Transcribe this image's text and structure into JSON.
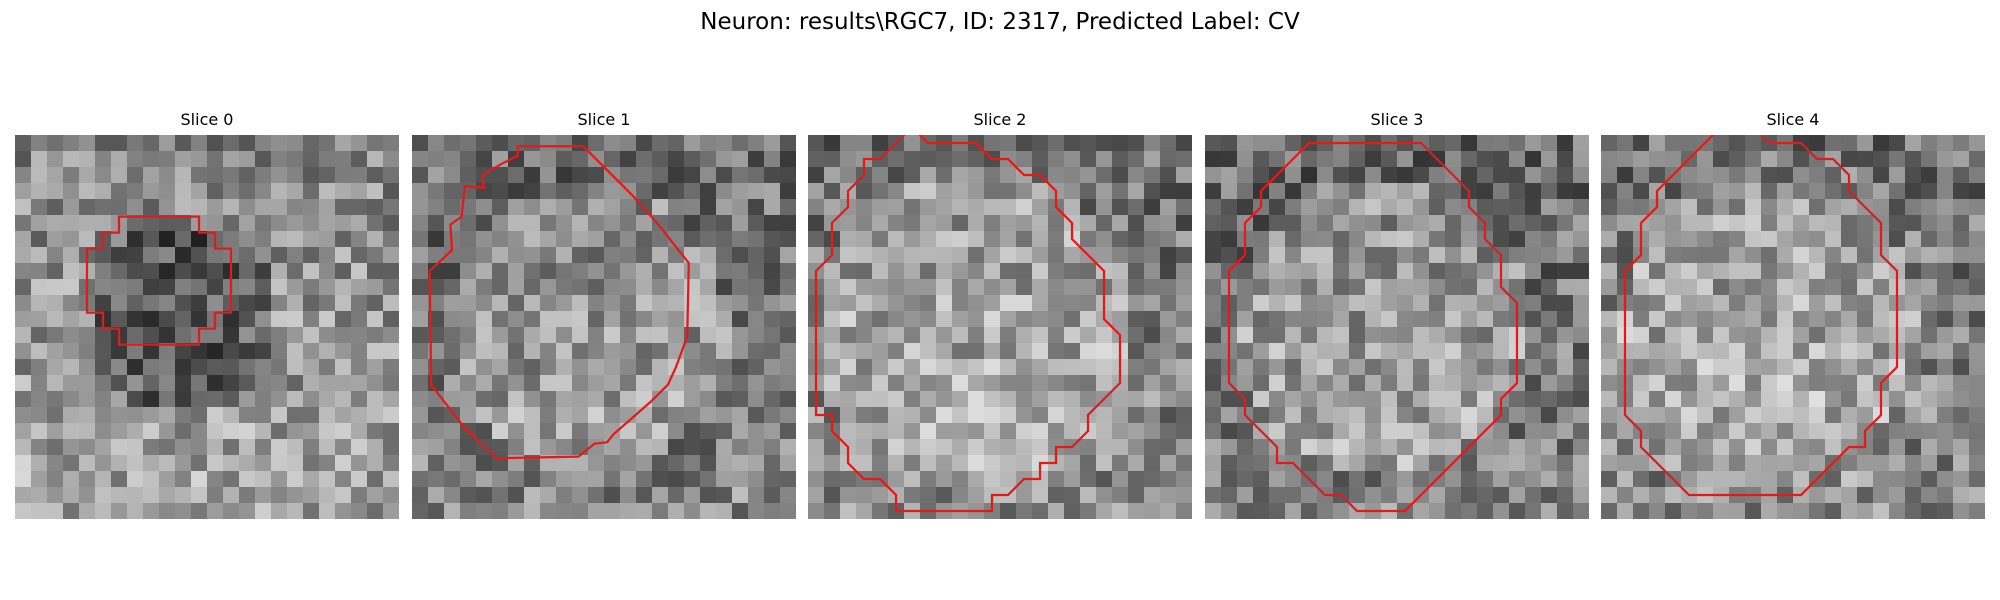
{
  "figure": {
    "suptitle": "Neuron: results\\RGC7, ID: 2317, Predicted Label: CV"
  },
  "panels": [
    {
      "title": "Slice 0",
      "contour": [
        [
          11.5,
          0.5
        ],
        [
          11.5,
          1.5
        ],
        [
          12.5,
          1.5
        ],
        [
          12.5,
          2.5
        ],
        [
          13.5,
          2.5
        ],
        [
          13.5,
          3.5
        ],
        [
          13.5,
          4.5
        ],
        [
          13.5,
          5.5
        ],
        [
          13.5,
          6.5
        ],
        [
          12.5,
          6.5
        ],
        [
          12.5,
          7.5
        ],
        [
          11.5,
          7.5
        ],
        [
          11.5,
          8.5
        ],
        [
          10.5,
          8.5
        ],
        [
          9.5,
          8.5
        ],
        [
          8.5,
          8.5
        ],
        [
          7.5,
          8.5
        ],
        [
          6.5,
          8.5
        ],
        [
          6.5,
          7.5
        ],
        [
          5.5,
          7.5
        ],
        [
          5.5,
          6.5
        ],
        [
          4.5,
          6.5
        ],
        [
          4.5,
          5.5
        ],
        [
          4.5,
          4.5
        ],
        [
          4.5,
          3.5
        ],
        [
          4.5,
          2.5
        ],
        [
          5.5,
          2.5
        ],
        [
          5.5,
          1.5
        ],
        [
          6.5,
          1.5
        ],
        [
          6.5,
          0.5
        ],
        [
          7.5,
          0.5
        ],
        [
          8.5,
          0.5
        ],
        [
          9.5,
          0.5
        ],
        [
          10.5,
          0.5
        ]
      ],
      "contour_offset": [
        0,
        4.6
      ],
      "contour_scale": 1
    },
    {
      "title": "Slice 1",
      "contour": [
        [
          6.6,
          0.7
        ],
        [
          10.7,
          0.7
        ],
        [
          12.6,
          2.6
        ],
        [
          13.8,
          3.8
        ],
        [
          15.4,
          5.6
        ],
        [
          16.5,
          7.0
        ],
        [
          17.3,
          8.0
        ],
        [
          17.2,
          12.6
        ],
        [
          16.5,
          14.5
        ],
        [
          16.0,
          15.6
        ],
        [
          15.0,
          16.6
        ],
        [
          12.6,
          18.7
        ],
        [
          12.2,
          19.2
        ],
        [
          11.4,
          19.3
        ],
        [
          10.4,
          20.1
        ],
        [
          5.3,
          20.2
        ],
        [
          3.2,
          18.2
        ],
        [
          1.5,
          16.0
        ],
        [
          1.2,
          15.7
        ],
        [
          1.1,
          8.5
        ],
        [
          2.5,
          7.2
        ],
        [
          2.4,
          5.6
        ],
        [
          3.1,
          5.1
        ],
        [
          3.3,
          3.2
        ],
        [
          4.5,
          3.3
        ],
        [
          4.4,
          2.5
        ],
        [
          5.6,
          1.8
        ],
        [
          6.6,
          1.3
        ]
      ],
      "contour_offset": [
        0,
        0
      ],
      "contour_scale": 1
    },
    {
      "title": "Slice 2",
      "contour": [
        [
          6.5,
          -0.5
        ],
        [
          7.5,
          0.5
        ],
        [
          8.5,
          0.5
        ],
        [
          9.5,
          0.5
        ],
        [
          10.5,
          0.5
        ],
        [
          11.5,
          1.5
        ],
        [
          12.5,
          1.5
        ],
        [
          13.5,
          2.5
        ],
        [
          14.5,
          2.5
        ],
        [
          15.5,
          3.5
        ],
        [
          15.5,
          4.5
        ],
        [
          16.5,
          5.5
        ],
        [
          16.5,
          6.5
        ],
        [
          17.5,
          7.5
        ],
        [
          18.5,
          8.5
        ],
        [
          18.5,
          9.5
        ],
        [
          18.5,
          10.5
        ],
        [
          18.5,
          11.5
        ],
        [
          19.5,
          12.5
        ],
        [
          19.5,
          13.5
        ],
        [
          19.5,
          14.5
        ],
        [
          19.5,
          15.5
        ],
        [
          18.5,
          16.5
        ],
        [
          17.5,
          17.5
        ],
        [
          17.5,
          18.5
        ],
        [
          16.5,
          19.5
        ],
        [
          15.5,
          19.5
        ],
        [
          15.5,
          20.5
        ],
        [
          14.5,
          20.5
        ],
        [
          14.5,
          21.5
        ],
        [
          13.5,
          21.5
        ],
        [
          12.5,
          22.5
        ],
        [
          11.5,
          22.5
        ],
        [
          11.5,
          23.5
        ],
        [
          10.5,
          23.5
        ],
        [
          9.5,
          23.5
        ],
        [
          8.5,
          23.5
        ],
        [
          7.5,
          23.5
        ],
        [
          6.5,
          23.5
        ],
        [
          5.5,
          23.5
        ],
        [
          5.5,
          22.5
        ],
        [
          4.5,
          21.5
        ],
        [
          3.5,
          21.5
        ],
        [
          2.5,
          20.5
        ],
        [
          2.5,
          19.5
        ],
        [
          1.5,
          18.5
        ],
        [
          1.5,
          17.5
        ],
        [
          0.5,
          17.5
        ],
        [
          0.5,
          16.5
        ],
        [
          0.5,
          15.5
        ],
        [
          0.5,
          14.5
        ],
        [
          0.5,
          13.5
        ],
        [
          0.5,
          12.5
        ],
        [
          0.5,
          11.5
        ],
        [
          0.5,
          10.5
        ],
        [
          0.5,
          9.5
        ],
        [
          0.5,
          8.5
        ],
        [
          1.5,
          7.5
        ],
        [
          1.5,
          6.5
        ],
        [
          1.5,
          5.5
        ],
        [
          2.5,
          4.5
        ],
        [
          2.5,
          3.5
        ],
        [
          3.5,
          2.5
        ],
        [
          3.5,
          1.5
        ],
        [
          4.5,
          1.5
        ],
        [
          5.5,
          0.5
        ]
      ],
      "contour_offset": [
        0,
        0
      ],
      "contour_scale": 1
    },
    {
      "title": "Slice 3",
      "contour": [
        [
          7.5,
          0.5
        ],
        [
          6.5,
          0.5
        ],
        [
          5.5,
          1.5
        ],
        [
          4.5,
          2.5
        ],
        [
          3.5,
          3.5
        ],
        [
          3.5,
          4.5
        ],
        [
          2.5,
          5.5
        ],
        [
          2.5,
          6.5
        ],
        [
          2.5,
          7.5
        ],
        [
          1.5,
          8.5
        ],
        [
          1.5,
          9.5
        ],
        [
          1.5,
          10.5
        ],
        [
          1.5,
          11.5
        ],
        [
          1.5,
          12.5
        ],
        [
          1.5,
          13.5
        ],
        [
          1.5,
          14.5
        ],
        [
          1.5,
          15.5
        ],
        [
          2.5,
          16.5
        ],
        [
          2.5,
          17.5
        ],
        [
          3.5,
          18.5
        ],
        [
          4.5,
          19.5
        ],
        [
          4.5,
          20.5
        ],
        [
          5.5,
          20.5
        ],
        [
          6.5,
          21.5
        ],
        [
          7.5,
          22.5
        ],
        [
          8.5,
          22.5
        ],
        [
          9.5,
          23.5
        ],
        [
          12.5,
          23.5
        ],
        [
          13.5,
          22.5
        ],
        [
          14.5,
          21.5
        ],
        [
          15.5,
          20.5
        ],
        [
          16.5,
          19.5
        ],
        [
          17.5,
          18.5
        ],
        [
          18.5,
          17.5
        ],
        [
          18.5,
          16.5
        ],
        [
          19.5,
          15.5
        ],
        [
          19.5,
          14.5
        ],
        [
          19.5,
          13.5
        ],
        [
          19.5,
          12.5
        ],
        [
          19.5,
          11.5
        ],
        [
          19.5,
          10.5
        ],
        [
          18.5,
          9.5
        ],
        [
          18.5,
          8.5
        ],
        [
          18.5,
          7.5
        ],
        [
          17.5,
          6.5
        ],
        [
          17.5,
          5.5
        ],
        [
          16.5,
          4.5
        ],
        [
          16.5,
          3.5
        ],
        [
          15.5,
          2.5
        ],
        [
          14.5,
          1.5
        ],
        [
          13.5,
          0.5
        ]
      ],
      "contour_offset": [
        0,
        0
      ],
      "contour_scale": 1
    },
    {
      "title": "Slice 4",
      "contour": [
        [
          7.5,
          0.5
        ],
        [
          8.5,
          0.5
        ],
        [
          9.5,
          0.5
        ],
        [
          10.5,
          1.5
        ],
        [
          11.5,
          1.5
        ],
        [
          12.5,
          1.5
        ],
        [
          13.5,
          2.5
        ],
        [
          14.5,
          2.5
        ],
        [
          15.5,
          3.5
        ],
        [
          15.5,
          4.5
        ],
        [
          16.5,
          5.5
        ],
        [
          17.5,
          6.5
        ],
        [
          17.5,
          7.5
        ],
        [
          17.5,
          8.5
        ],
        [
          18.5,
          9.5
        ],
        [
          18.5,
          10.5
        ],
        [
          18.5,
          11.5
        ],
        [
          18.5,
          12.5
        ],
        [
          18.5,
          13.5
        ],
        [
          18.5,
          14.5
        ],
        [
          18.5,
          15.5
        ],
        [
          17.5,
          16.5
        ],
        [
          17.5,
          17.5
        ],
        [
          17.5,
          18.5
        ],
        [
          16.5,
          19.5
        ],
        [
          16.5,
          20.5
        ],
        [
          15.5,
          20.5
        ],
        [
          14.5,
          21.5
        ],
        [
          13.5,
          22.5
        ],
        [
          12.5,
          23.5
        ],
        [
          5.5,
          23.5
        ],
        [
          4.5,
          22.5
        ],
        [
          3.5,
          21.5
        ],
        [
          2.5,
          20.5
        ],
        [
          2.5,
          19.5
        ],
        [
          1.5,
          18.5
        ],
        [
          1.5,
          17.5
        ],
        [
          1.5,
          16.5
        ],
        [
          1.5,
          15.5
        ],
        [
          1.5,
          14.5
        ],
        [
          1.5,
          13.5
        ],
        [
          1.5,
          12.5
        ],
        [
          1.5,
          11.5
        ],
        [
          1.5,
          10.5
        ],
        [
          1.5,
          9.5
        ],
        [
          2.5,
          8.5
        ],
        [
          2.5,
          7.5
        ],
        [
          2.5,
          6.5
        ],
        [
          3.5,
          5.5
        ],
        [
          3.5,
          4.5
        ],
        [
          4.5,
          3.5
        ],
        [
          5.5,
          2.5
        ],
        [
          6.5,
          1.5
        ]
      ],
      "contour_offset": [
        0,
        -1.0
      ],
      "contour_scale": 1
    }
  ],
  "image_style": {
    "colormap": "gray",
    "grid_size": 24,
    "contour_color": "#e31a1c"
  }
}
